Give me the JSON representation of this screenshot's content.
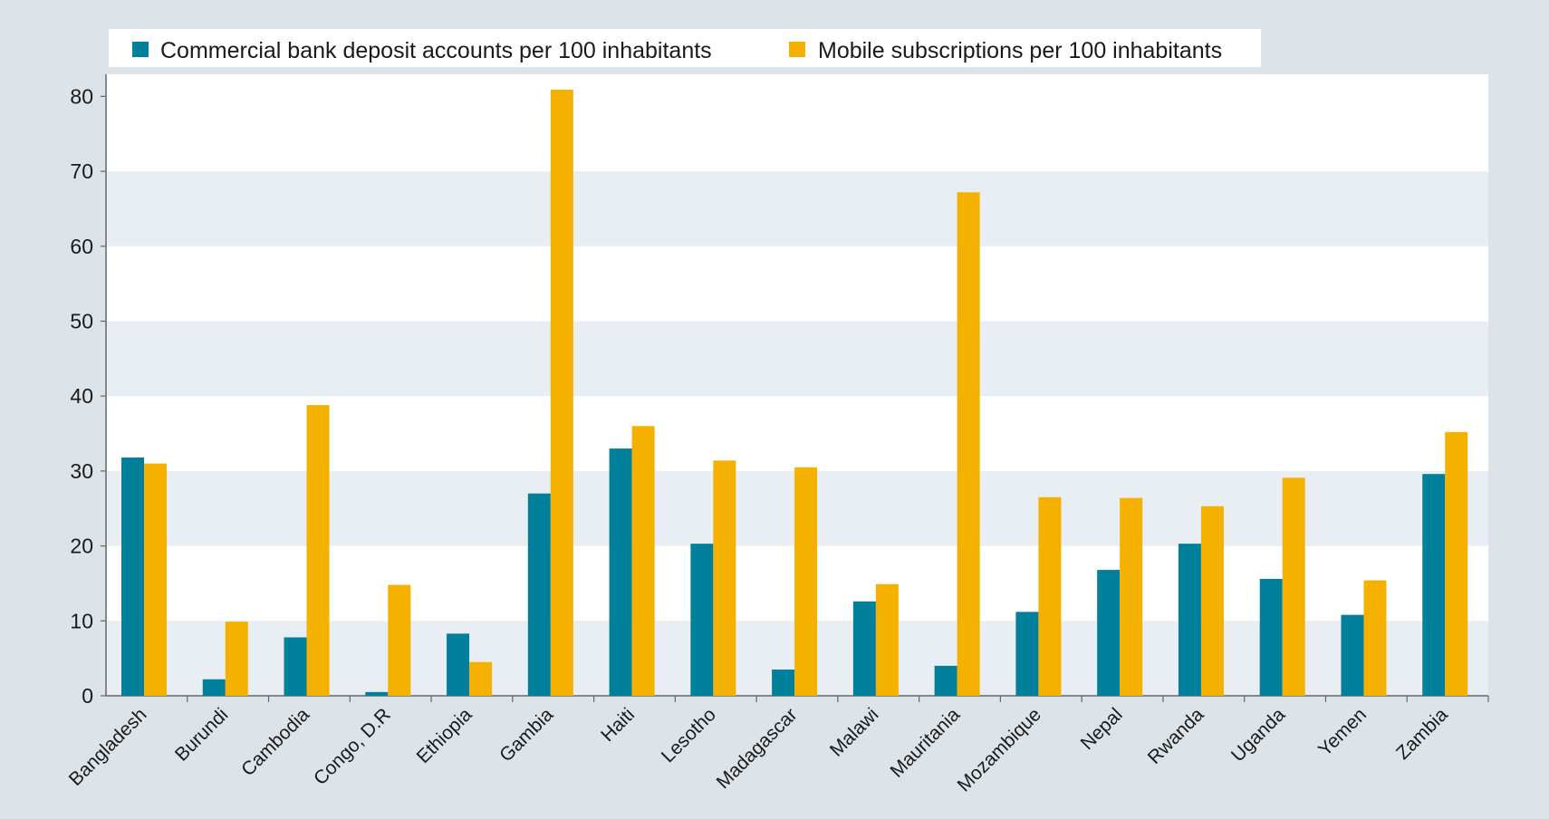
{
  "chart_data": {
    "type": "bar",
    "categories": [
      "Bangladesh",
      "Burundi",
      "Cambodia",
      "Congo, D.R",
      "Ethiopia",
      "Gambia",
      "Haiti",
      "Lesotho",
      "Madagascar",
      "Malawi",
      "Mauritania",
      "Mozambique",
      "Nepal",
      "Rwanda",
      "Uganda",
      "Yemen",
      "Zambia"
    ],
    "series": [
      {
        "name": "Commercial bank deposit accounts per 100 inhabitants",
        "color": "#00809a",
        "values": [
          31.8,
          2.2,
          7.8,
          0.5,
          8.3,
          27.0,
          33.0,
          20.3,
          3.5,
          12.6,
          4.0,
          11.2,
          16.8,
          20.3,
          15.6,
          10.8,
          29.6
        ]
      },
      {
        "name": "Mobile subscriptions per 100 inhabitants",
        "color": "#f5b100",
        "values": [
          31.0,
          9.9,
          38.8,
          14.8,
          4.5,
          82.5,
          36.0,
          31.4,
          30.5,
          14.9,
          67.2,
          26.5,
          26.4,
          25.3,
          29.1,
          15.4,
          35.2
        ]
      }
    ],
    "yticks": [
      0,
      10,
      20,
      30,
      40,
      50,
      60,
      70,
      80
    ],
    "ylim": [
      0,
      80
    ],
    "grid": "alternating horizontal bands",
    "legend_position": "top"
  }
}
